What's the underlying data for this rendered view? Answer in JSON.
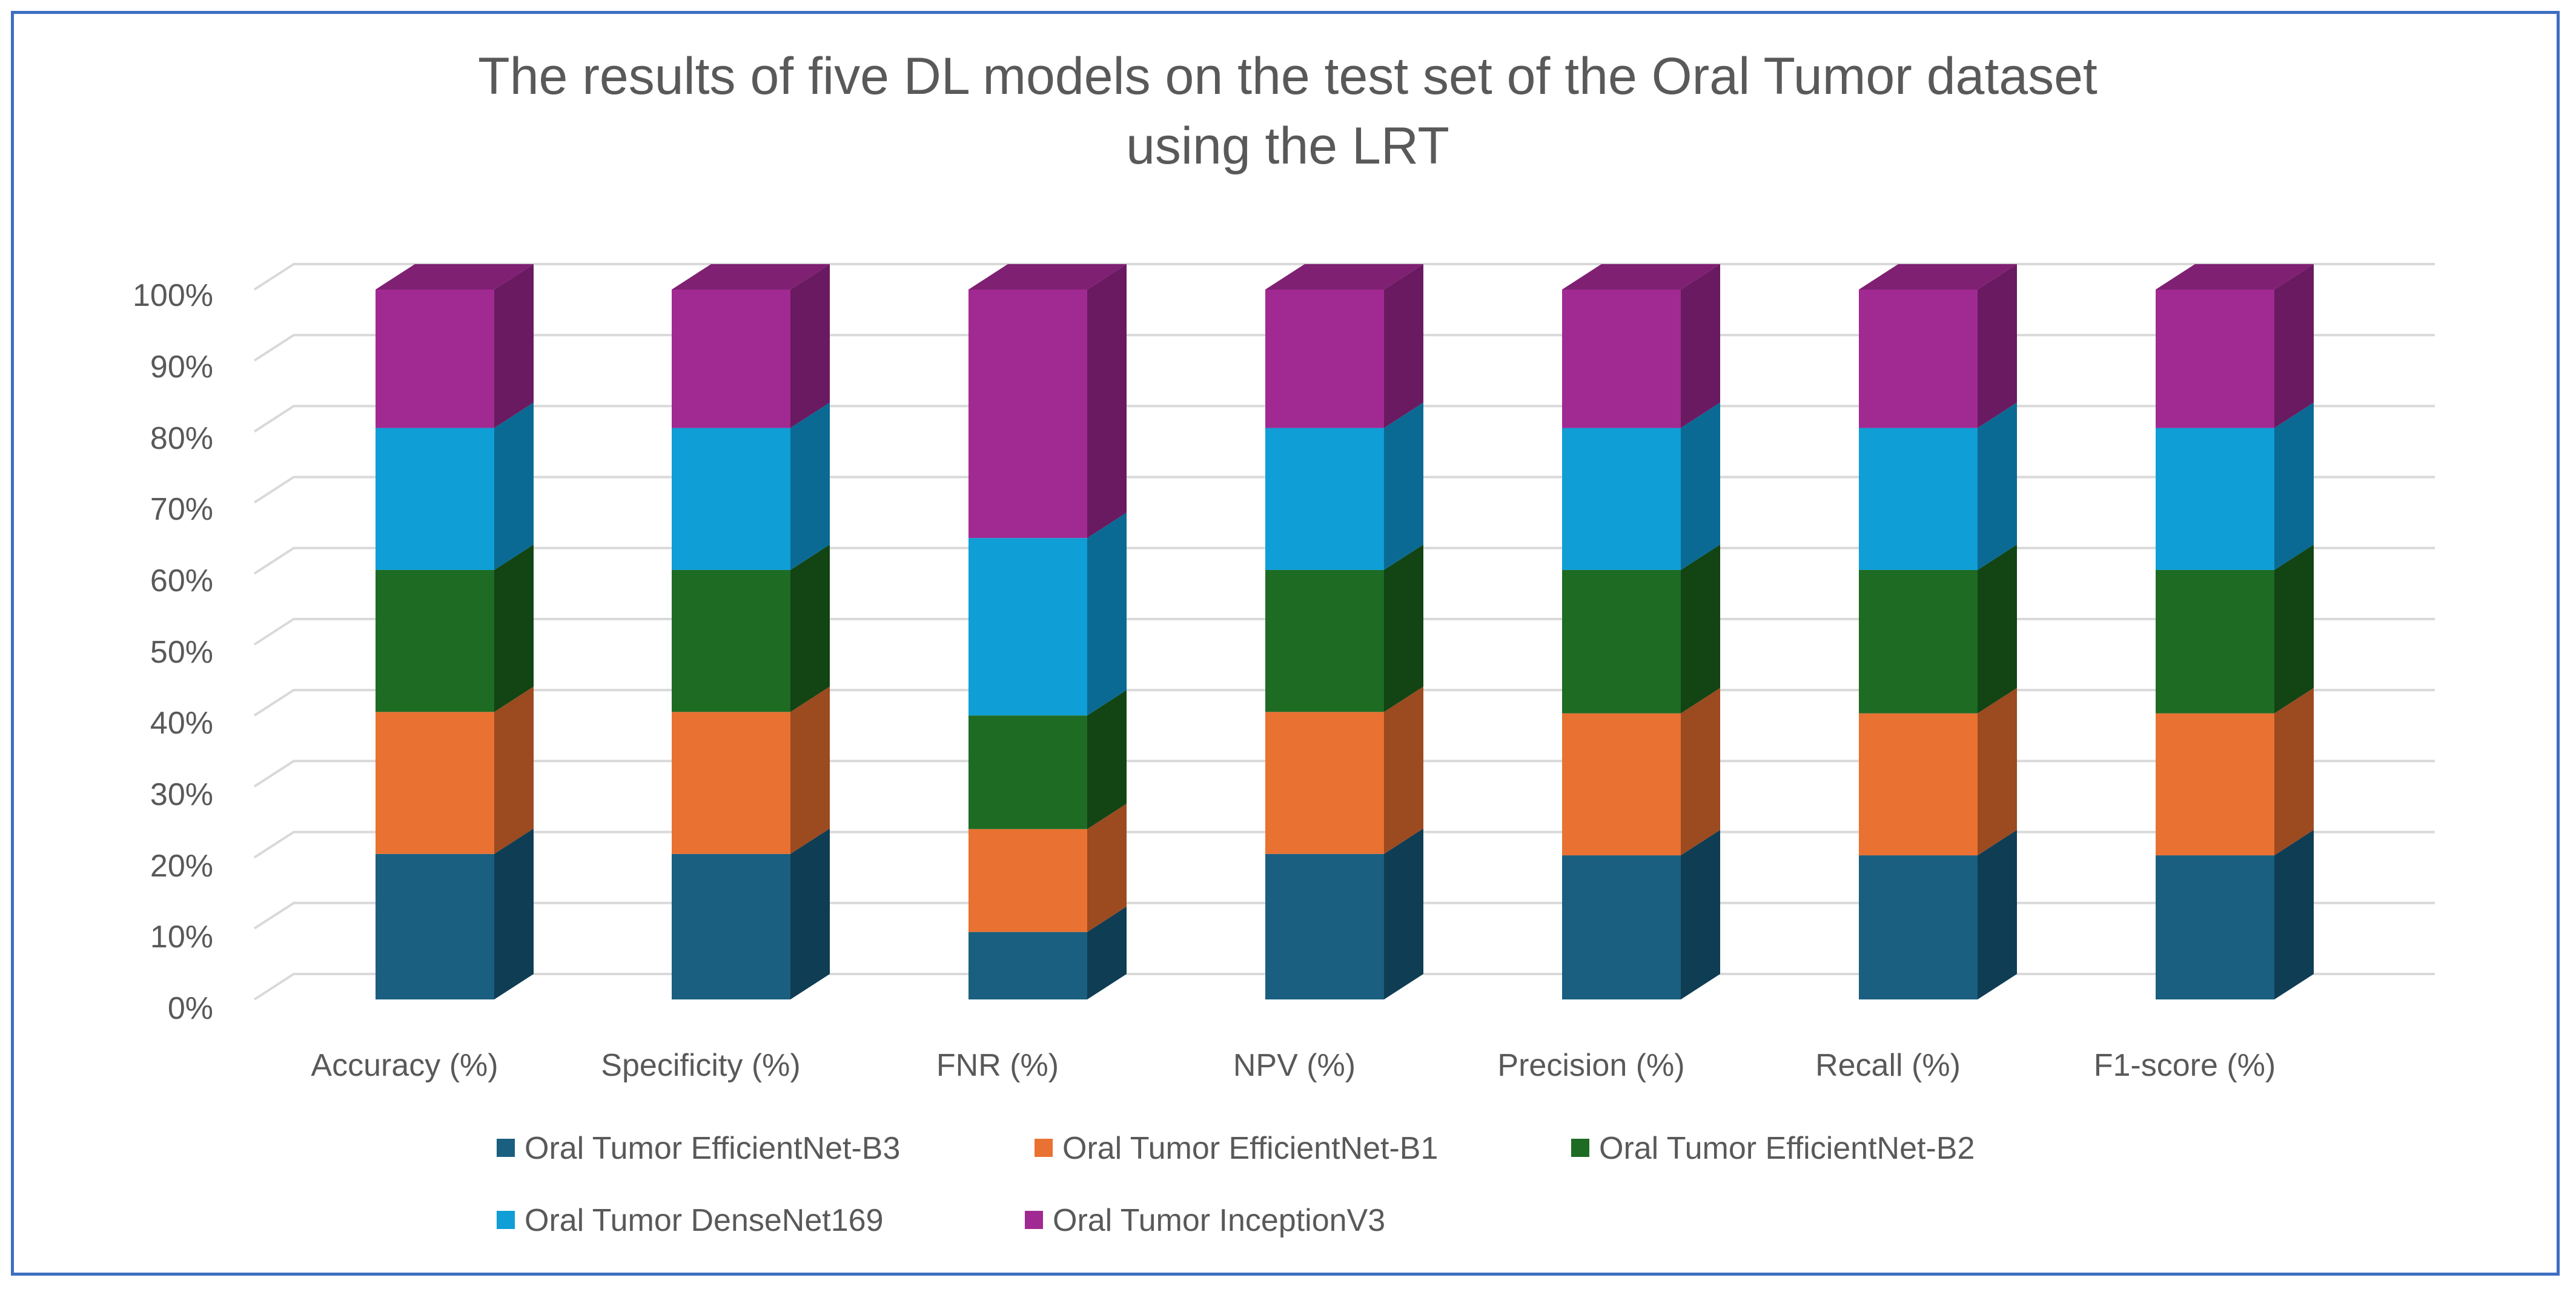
{
  "chart_data": {
    "type": "bar",
    "stacked": "percent",
    "title_lines": [
      "The results of five DL models on the test set of the Oral Tumor dataset",
      "using the LRT"
    ],
    "categories": [
      "Accuracy (%)",
      "Specificity (%)",
      "FNR (%)",
      "NPV (%)",
      "Precision (%)",
      "Recall (%)",
      "F1-score (%)"
    ],
    "series": [
      {
        "name": "Oral Tumor EfficientNet-B3",
        "values": [
          20.5,
          20.5,
          9.5,
          20.5,
          20.3,
          20.3,
          20.3
        ]
      },
      {
        "name": "Oral Tumor EfficientNet-B1",
        "values": [
          20.0,
          20.0,
          14.5,
          20.0,
          20.0,
          20.0,
          20.0
        ]
      },
      {
        "name": "Oral Tumor EfficientNet-B2",
        "values": [
          20.0,
          20.0,
          16.0,
          20.0,
          20.2,
          20.2,
          20.2
        ]
      },
      {
        "name": "Oral Tumor DenseNet169",
        "values": [
          20.0,
          20.0,
          25.0,
          20.0,
          20.0,
          20.0,
          20.0
        ]
      },
      {
        "name": "Oral Tumor InceptionV3",
        "values": [
          19.5,
          19.5,
          35.0,
          19.5,
          19.5,
          19.5,
          19.5
        ]
      }
    ],
    "series_colors": [
      "#1a5f7f",
      "#e97132",
      "#1e6b24",
      "#0f9ed5",
      "#a12a92"
    ],
    "series_side_colors": [
      "#0f3d54",
      "#9c4a20",
      "#124414",
      "#0a6a93",
      "#6a1a60"
    ],
    "series_top_colors": [
      "#124a66",
      "#b85a26",
      "#17541b",
      "#0c7fb0",
      "#7f2072"
    ],
    "y_ticks": [
      "0%",
      "10%",
      "20%",
      "30%",
      "40%",
      "50%",
      "60%",
      "70%",
      "80%",
      "90%",
      "100%"
    ],
    "ylim": [
      0,
      100
    ],
    "grid": true,
    "legend_position": "bottom"
  }
}
